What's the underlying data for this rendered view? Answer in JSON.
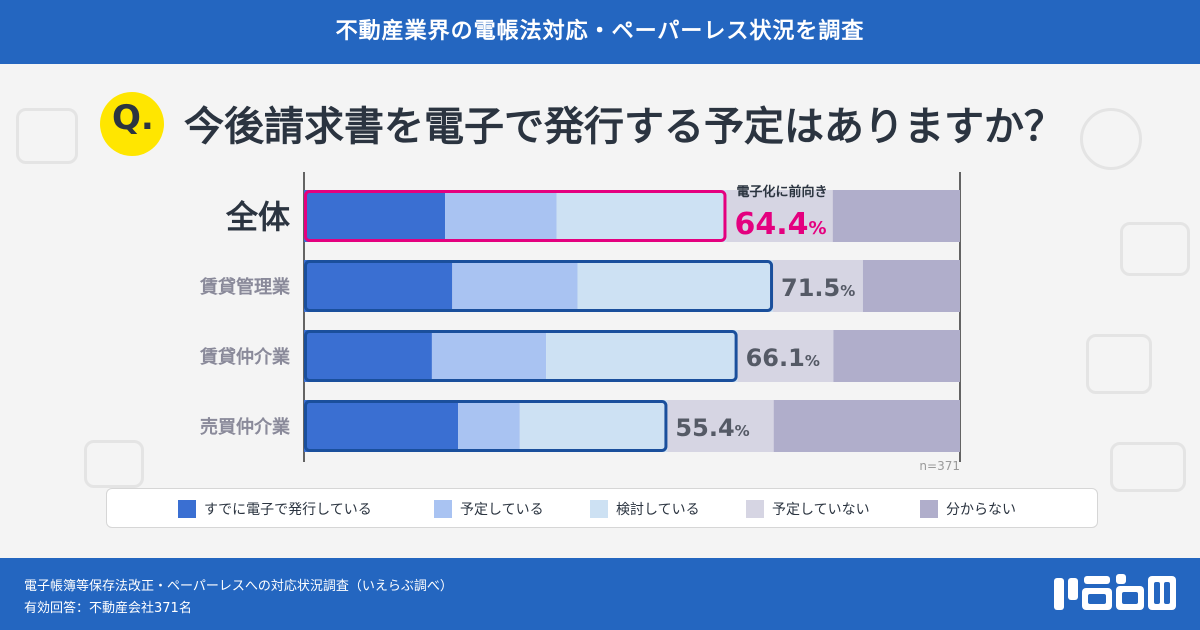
{
  "header": {
    "title": "不動産業界の電帳法対応・ペーパーレス状況を調査"
  },
  "question": {
    "mark": "Q.",
    "text": "今後請求書を電子で発行する予定はありますか？"
  },
  "chart_data": {
    "type": "bar",
    "orientation": "horizontal",
    "stacked": true,
    "unit": "%",
    "categories": [
      "全体",
      "賃貸管理業",
      "賃貸仲介業",
      "売買仲介業"
    ],
    "series": [
      {
        "name": "すでに電子で発行している",
        "color": "#3a6fd2",
        "values": [
          21.5,
          22.6,
          19.5,
          23.5
        ]
      },
      {
        "name": "予定している",
        "color": "#a9c3f2",
        "values": [
          17.0,
          19.1,
          17.4,
          9.4
        ]
      },
      {
        "name": "検討している",
        "color": "#cde1f3",
        "values": [
          25.9,
          29.8,
          29.2,
          22.5
        ]
      },
      {
        "name": "予定していない",
        "color": "#d6d5e3",
        "values": [
          16.2,
          13.7,
          14.6,
          16.2
        ]
      },
      {
        "name": "分からない",
        "color": "#b0aecb",
        "values": [
          19.4,
          14.8,
          19.3,
          28.4
        ]
      }
    ],
    "highlight_totals": [
      {
        "value": "64.4",
        "pct": "%"
      },
      {
        "value": "71.5",
        "pct": "%"
      },
      {
        "value": "66.1",
        "pct": "%"
      },
      {
        "value": "55.4",
        "pct": "%"
      }
    ],
    "highlight_label": "電子化に前向き",
    "sample_note": "n=371",
    "accent_color": "#e4007f",
    "outline_color": "#1a4f9c",
    "xlim": [
      0,
      100
    ]
  },
  "footer": {
    "source_line1": "電子帳簿等保存法改正・ペーパーレスへの対応状況調査（いえらぶ調べ）",
    "source_line2": "有効回答：不動産会社371名",
    "logo_text": "いえらぶ"
  }
}
